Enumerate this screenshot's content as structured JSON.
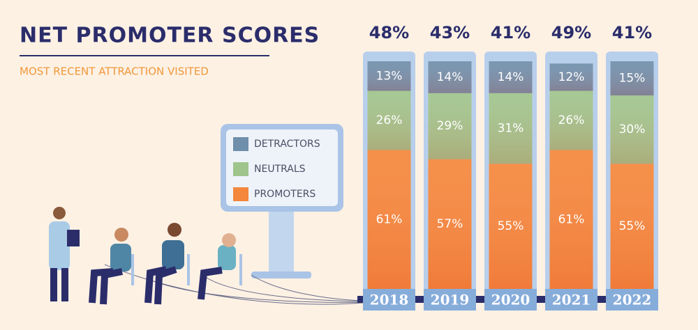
{
  "chart_data": {
    "type": "bar",
    "stacked": true,
    "title": "NET PROMOTER SCORES",
    "subtitle": "MOST RECENT ATTRACTION VISITED",
    "categories": [
      "2018",
      "2019",
      "2020",
      "2021",
      "2022"
    ],
    "ylim": [
      0,
      100
    ],
    "series": [
      {
        "name": "DETRACTORS",
        "color": "#6f8fab",
        "values": [
          13,
          14,
          14,
          12,
          15
        ],
        "value_labels": [
          "13%",
          "14%",
          "14%",
          "12%",
          "15%"
        ]
      },
      {
        "name": "NEUTRALS",
        "color": "#9fc48c",
        "values": [
          26,
          29,
          31,
          26,
          30
        ],
        "value_labels": [
          "26%",
          "29%",
          "31%",
          "26%",
          "30%"
        ]
      },
      {
        "name": "PROMOTERS",
        "color": "#f4873c",
        "values": [
          61,
          57,
          55,
          61,
          55
        ],
        "value_labels": [
          "61%",
          "57%",
          "55%",
          "61%",
          "55%"
        ]
      }
    ],
    "totals": {
      "values": [
        48,
        43,
        41,
        49,
        41
      ],
      "value_labels": [
        "48%",
        "43%",
        "41%",
        "49%",
        "41%"
      ]
    }
  }
}
